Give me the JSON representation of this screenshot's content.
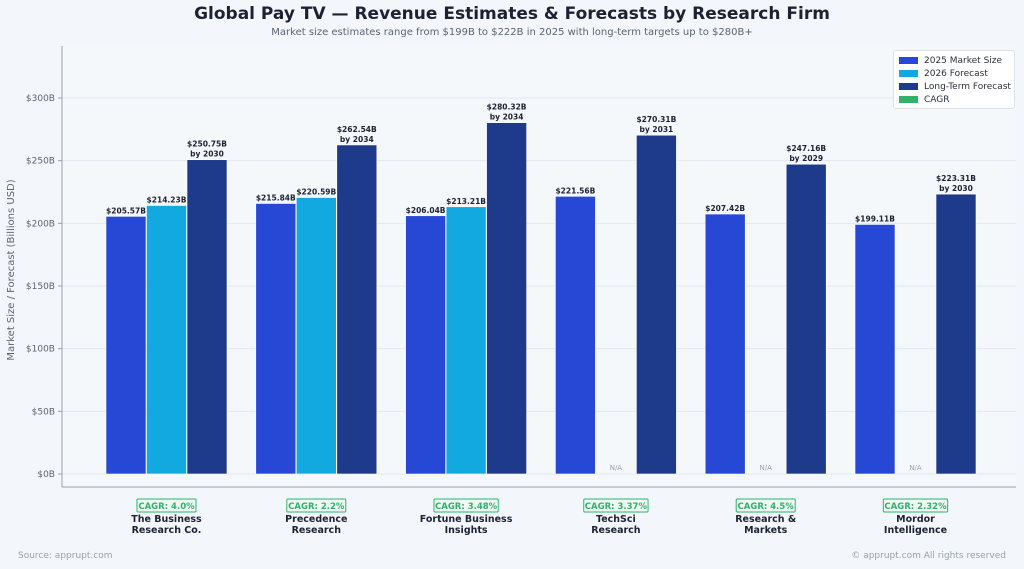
{
  "header": {
    "title": "Global Pay TV — Revenue Estimates & Forecasts by Research Firm",
    "subtitle": "Market size estimates range from $199B to $222B in 2025 with long-term targets up to $280B+"
  },
  "footer": {
    "source": "Source: apprupt.com",
    "copyright": "© apprupt.com  All rights reserved"
  },
  "colors": {
    "market_2025": "#2648d4",
    "forecast_2026": "#12a9e0",
    "long_term": "#1e3a8a",
    "cagr": "#2fb36b"
  },
  "chart_data": {
    "type": "bar",
    "title": "Global Pay TV — Revenue Estimates & Forecasts by Research Firm",
    "subtitle": "Market size estimates range from $199B to $222B in 2025 with long-term targets up to $280B+",
    "xlabel": "",
    "ylabel": "Market Size / Forecast (Billions USD)",
    "ylim": [
      0,
      340
    ],
    "yticks": [
      0,
      50,
      100,
      150,
      200,
      250,
      300
    ],
    "ytick_labels": [
      "$0B",
      "$50B",
      "$100B",
      "$150B",
      "$200B",
      "$250B",
      "$300B"
    ],
    "grid": true,
    "legend_position": "top-right",
    "legend": [
      "2025 Market Size",
      "2026 Forecast",
      "Long-Term Forecast",
      "CAGR"
    ],
    "categories": [
      "The Business\nResearch Co.",
      "Precedence\nResearch",
      "Fortune Business\nInsights",
      "TechSci\nResearch",
      "Research &\nMarkets",
      "Mordor\nIntelligence"
    ],
    "series": [
      {
        "name": "2025 Market Size",
        "values": [
          205.57,
          215.84,
          206.04,
          221.56,
          207.42,
          199.11
        ],
        "labels": [
          "$205.57B",
          "$215.84B",
          "$206.04B",
          "$221.56B",
          "$207.42B",
          "$199.11B"
        ]
      },
      {
        "name": "2026 Forecast",
        "values": [
          214.23,
          220.59,
          213.21,
          null,
          null,
          null
        ],
        "labels": [
          "$214.23B",
          "$220.59B",
          "$213.21B",
          "N/A",
          "N/A",
          "N/A"
        ]
      },
      {
        "name": "Long-Term Forecast",
        "values": [
          250.75,
          262.54,
          280.32,
          270.31,
          247.16,
          223.31
        ],
        "labels": [
          "$250.75B",
          "$262.54B",
          "$280.32B",
          "$270.31B",
          "$247.16B",
          "$223.31B"
        ],
        "years": [
          "by 2030",
          "by 2034",
          "by 2034",
          "by 2031",
          "by 2029",
          "by 2030"
        ]
      }
    ],
    "cagr": [
      "CAGR: 4.0%",
      "CAGR: 2.2%",
      "CAGR: 3.48%",
      "CAGR: 3.37%",
      "CAGR: 4.5%",
      "CAGR: 2.32%"
    ]
  }
}
